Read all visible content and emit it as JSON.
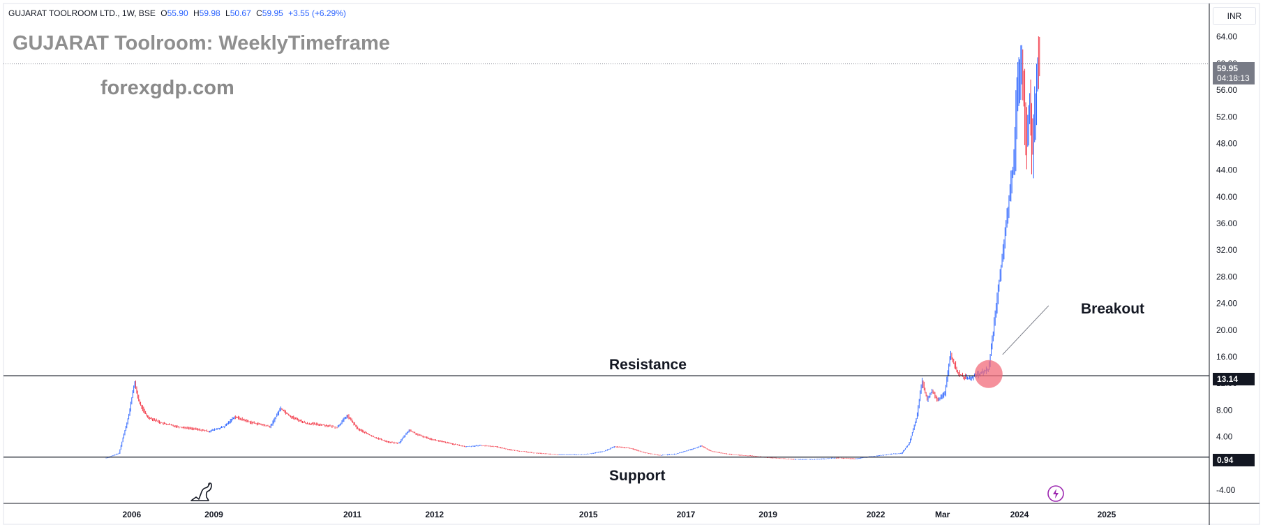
{
  "header": {
    "symbol": "GUJARAT TOOLROOM LTD., 1W, BSE",
    "open_label": "O",
    "open": "55.90",
    "high_label": "H",
    "high": "59.98",
    "low_label": "L",
    "low": "50.67",
    "close_label": "C",
    "close": "59.95",
    "change": "+3.55 (+6.29%)"
  },
  "chart_title": "GUJARAT Toolroom: WeeklyTimeframe",
  "watermark": "forexgdp.com",
  "annotations": {
    "resistance": "Resistance",
    "support": "Support",
    "breakout": "Breakout"
  },
  "price_scale": {
    "currency": "INR",
    "last_price": "59.95",
    "countdown": "04:18:13",
    "resistance_tag": "13.14",
    "support_tag": "0.94"
  },
  "colors": {
    "up": "#2962ff",
    "down": "#f23645",
    "breakout_marker": "#f26b7a"
  },
  "icons": [
    "tradingview-logo-icon",
    "lightning-icon"
  ],
  "chart_data": {
    "type": "candlestick",
    "title": "GUJARAT Toolroom: WeeklyTimeframe",
    "ylim": [
      -6,
      69
    ],
    "y_ticks": [
      -4,
      0,
      4,
      8,
      12,
      16,
      20,
      24,
      28,
      32,
      36,
      40,
      44,
      48,
      52,
      56,
      60,
      64
    ],
    "y_tick_labels": [
      "-4.00",
      "0.00",
      "4.00",
      "8.00",
      "12.00",
      "16.00",
      "20.00",
      "24.00",
      "28.00",
      "32.00",
      "36.00",
      "40.00",
      "44.00",
      "48.00",
      "52.00",
      "56.00",
      "60.00",
      "64.00"
    ],
    "x_range": [
      2003.0,
      2026.5
    ],
    "x_ticks": [
      {
        "label": "2006",
        "x": 2005.5
      },
      {
        "label": "2009",
        "x": 2007.1
      },
      {
        "label": "2011",
        "x": 2009.8
      },
      {
        "label": "2012",
        "x": 2011.4
      },
      {
        "label": "2015",
        "x": 2014.4
      },
      {
        "label": "2017",
        "x": 2016.3
      },
      {
        "label": "2019",
        "x": 2017.9
      },
      {
        "label": "2022",
        "x": 2020.0
      },
      {
        "label": "Mar",
        "x": 2021.3
      },
      {
        "label": "2024",
        "x": 2022.8
      },
      {
        "label": "2025",
        "x": 2024.5
      }
    ],
    "horizontal_levels": [
      {
        "name": "Resistance",
        "value": 13.14
      },
      {
        "name": "Support",
        "value": 0.94
      }
    ],
    "last_price_line": 59.95,
    "breakout_marker": {
      "x": 2022.2,
      "y": 13.4
    },
    "price_path": [
      [
        2005.0,
        0.8
      ],
      [
        2005.25,
        1.5
      ],
      [
        2005.45,
        7.5
      ],
      [
        2005.55,
        12.2
      ],
      [
        2005.65,
        9.0
      ],
      [
        2005.8,
        7.0
      ],
      [
        2006.1,
        6.0
      ],
      [
        2006.4,
        5.5
      ],
      [
        2006.7,
        5.2
      ],
      [
        2007.0,
        4.8
      ],
      [
        2007.3,
        5.5
      ],
      [
        2007.5,
        7.0
      ],
      [
        2007.8,
        6.2
      ],
      [
        2008.2,
        5.5
      ],
      [
        2008.4,
        8.3
      ],
      [
        2008.6,
        7.0
      ],
      [
        2008.9,
        6.0
      ],
      [
        2009.2,
        5.8
      ],
      [
        2009.5,
        5.4
      ],
      [
        2009.7,
        7.2
      ],
      [
        2009.9,
        5.2
      ],
      [
        2010.2,
        4.0
      ],
      [
        2010.5,
        3.2
      ],
      [
        2010.7,
        3.0
      ],
      [
        2010.9,
        5.0
      ],
      [
        2011.1,
        4.2
      ],
      [
        2011.4,
        3.5
      ],
      [
        2011.7,
        3.0
      ],
      [
        2012.0,
        2.5
      ],
      [
        2012.3,
        2.7
      ],
      [
        2012.6,
        2.5
      ],
      [
        2012.9,
        2.0
      ],
      [
        2013.3,
        1.6
      ],
      [
        2013.8,
        1.3
      ],
      [
        2014.3,
        1.3
      ],
      [
        2014.7,
        1.8
      ],
      [
        2014.9,
        2.5
      ],
      [
        2015.2,
        2.3
      ],
      [
        2015.5,
        1.6
      ],
      [
        2015.8,
        1.2
      ],
      [
        2016.1,
        1.4
      ],
      [
        2016.4,
        2.1
      ],
      [
        2016.6,
        2.6
      ],
      [
        2016.8,
        1.8
      ],
      [
        2017.2,
        1.3
      ],
      [
        2017.6,
        1.1
      ],
      [
        2018.0,
        0.8
      ],
      [
        2018.4,
        0.6
      ],
      [
        2018.8,
        0.6
      ],
      [
        2019.2,
        0.8
      ],
      [
        2019.6,
        0.7
      ],
      [
        2020.0,
        1.1
      ],
      [
        2020.3,
        1.4
      ],
      [
        2020.5,
        1.5
      ],
      [
        2020.65,
        3.0
      ],
      [
        2020.8,
        7.0
      ],
      [
        2020.9,
        12.5
      ],
      [
        2021.0,
        9.5
      ],
      [
        2021.1,
        11.0
      ],
      [
        2021.2,
        9.5
      ],
      [
        2021.35,
        10.5
      ],
      [
        2021.45,
        16.5
      ],
      [
        2021.6,
        13.5
      ],
      [
        2021.75,
        12.8
      ],
      [
        2021.9,
        13.0
      ],
      [
        2022.05,
        13.5
      ],
      [
        2022.2,
        14.2
      ],
      [
        2022.3,
        20.5
      ],
      [
        2022.4,
        27.0
      ],
      [
        2022.5,
        33.0
      ],
      [
        2022.6,
        40.0
      ],
      [
        2022.7,
        46.0
      ],
      [
        2022.75,
        55.0
      ],
      [
        2022.8,
        57.5
      ],
      [
        2022.85,
        60.0
      ],
      [
        2022.9,
        52.0
      ],
      [
        2022.95,
        48.0
      ],
      [
        2023.0,
        55.0
      ],
      [
        2023.05,
        46.0
      ],
      [
        2023.1,
        52.0
      ],
      [
        2023.15,
        60.0
      ],
      [
        2023.2,
        59.95
      ]
    ]
  }
}
